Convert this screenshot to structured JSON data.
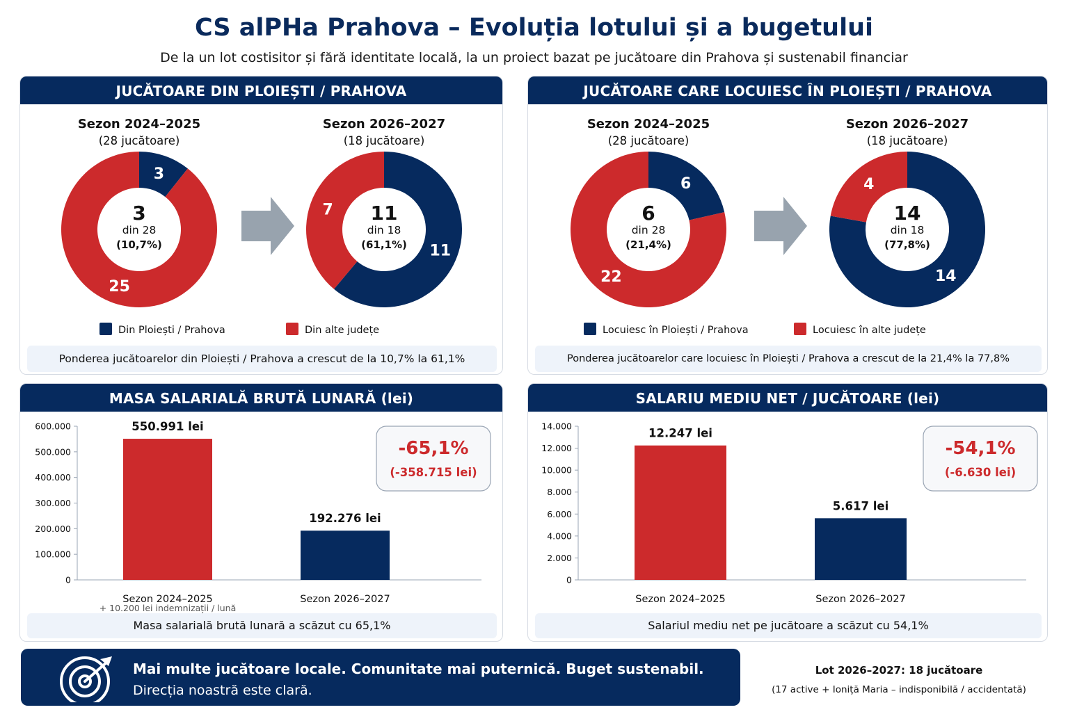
{
  "header": {
    "title": "CS alPHa Prahova – Evoluția lotului și a bugetului",
    "subtitle": "De la un lot costisitor și fără identitate locală, la un proiect bazat pe jucătoare din Prahova și sustenabil financiar"
  },
  "colors": {
    "navy": "#062a5e",
    "red": "#cc2a2c",
    "arrow": "#98a3ae",
    "note_bg": "#eef3fa"
  },
  "panels": {
    "origin": {
      "title": "JUCĂTOARE DIN PLOIEȘTI / PRAHOVA",
      "note": "Ponderea jucătoarelor din Ploiești / Prahova a crescut de la 10,7% la 61,1%"
    },
    "residence": {
      "title": "JUCĂTOARE CARE LOCUIESC ÎN PLOIEȘTI / PRAHOVA",
      "note": "Ponderea jucătoarelor care locuiesc în Ploiești / Prahova a crescut de la 21,4% la 77,8%"
    },
    "salary_mass": {
      "title": "MASA SALARIALĂ BRUTĂ LUNARĂ (lei)",
      "note": "Masa salarială brută lunară a scăzut cu 65,1%"
    },
    "avg_salary": {
      "title": "SALARIU MEDIU NET / JUCĂTOARE (lei)",
      "note": "Salariul mediu net pe jucătoare a scăzut cu 54,1%"
    }
  },
  "chart_data": [
    {
      "type": "pie",
      "panel": "origin",
      "legend": [
        "Din Ploiești / Prahova",
        "Din alte județe"
      ],
      "charts": [
        {
          "title": "Sezon 2024–2025",
          "subtitle": "(28 jucătoare)",
          "values": [
            3,
            25
          ],
          "center_value": "3",
          "center_line": "din 28",
          "center_pct": "(10,7%)"
        },
        {
          "title": "Sezon 2026–2027",
          "subtitle": "(18 jucătoare)",
          "values": [
            11,
            7
          ],
          "center_value": "11",
          "center_line": "din 18",
          "center_pct": "(61,1%)"
        }
      ]
    },
    {
      "type": "pie",
      "panel": "residence",
      "legend": [
        "Locuiesc în Ploiești / Prahova",
        "Locuiesc în alte județe"
      ],
      "charts": [
        {
          "title": "Sezon 2024–2025",
          "subtitle": "(28 jucătoare)",
          "values": [
            6,
            22
          ],
          "center_value": "6",
          "center_line": "din 28",
          "center_pct": "(21,4%)"
        },
        {
          "title": "Sezon 2026–2027",
          "subtitle": "(18 jucătoare)",
          "values": [
            14,
            4
          ],
          "center_value": "14",
          "center_line": "din 18",
          "center_pct": "(77,8%)"
        }
      ]
    },
    {
      "type": "bar",
      "panel": "salary_mass",
      "categories": [
        "Sezon 2024–2025",
        "Sezon 2026–2027"
      ],
      "values": [
        550991,
        192276
      ],
      "value_labels": [
        "550.991 lei",
        "192.276 lei"
      ],
      "ylim": [
        0,
        600000
      ],
      "yticks": [
        "0",
        "100.000",
        "200.000",
        "300.000",
        "400.000",
        "500.000",
        "600.000"
      ],
      "footnote": "+ 10.200 lei indemnizații / lună",
      "change_pct": "-65,1%",
      "change_abs": "(-358.715 lei)"
    },
    {
      "type": "bar",
      "panel": "avg_salary",
      "categories": [
        "Sezon 2024–2025",
        "Sezon 2026–2027"
      ],
      "values": [
        12247,
        5617
      ],
      "value_labels": [
        "12.247 lei",
        "5.617 lei"
      ],
      "ylim": [
        0,
        14000
      ],
      "yticks": [
        "0",
        "2.000",
        "4.000",
        "6.000",
        "8.000",
        "10.000",
        "12.000",
        "14.000"
      ],
      "change_pct": "-54,1%",
      "change_abs": "(-6.630 lei)"
    }
  ],
  "footer": {
    "main": "Mai multe jucătoare locale. Comunitate mai puternică. Buget sustenabil.",
    "sub": "Direcția noastră este clară.",
    "lot_title": "Lot 2026–2027: 18 jucătoare",
    "lot_sub": "(17 active + Ioniță Maria – indisponibilă / accidentată)"
  }
}
